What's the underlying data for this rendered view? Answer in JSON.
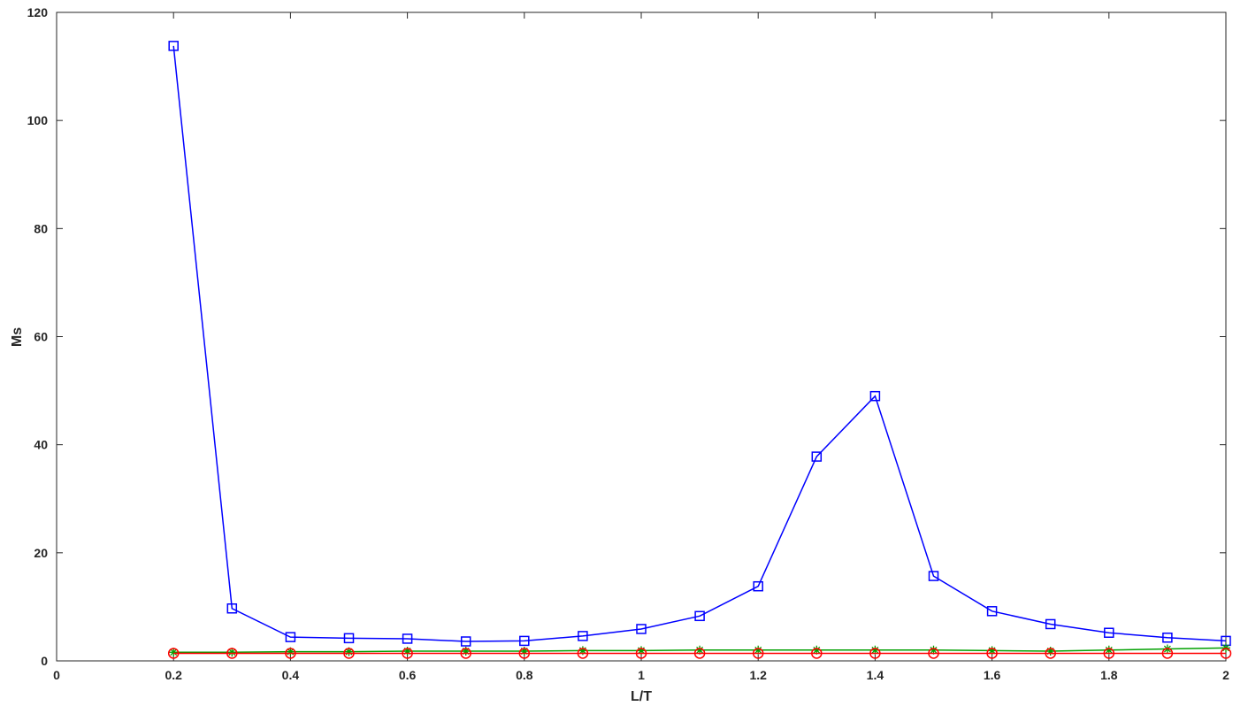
{
  "chart_data": {
    "type": "line",
    "xlabel": "L/T",
    "ylabel": "Ms",
    "xlim": [
      0,
      2
    ],
    "ylim": [
      0,
      120
    ],
    "xticks": [
      0,
      0.2,
      0.4,
      0.6,
      0.8,
      1,
      1.2,
      1.4,
      1.6,
      1.8,
      2
    ],
    "xtick_labels": [
      "0",
      "0.2",
      "0.4",
      "0.6",
      "0.8",
      "1",
      "1.2",
      "1.4",
      "1.6",
      "1.8",
      "2"
    ],
    "yticks": [
      0,
      20,
      40,
      60,
      80,
      100,
      120
    ],
    "ytick_labels": [
      "0",
      "20",
      "40",
      "60",
      "80",
      "100",
      "120"
    ],
    "grid": false,
    "x": [
      0.2,
      0.3,
      0.4,
      0.5,
      0.6,
      0.7,
      0.8,
      0.9,
      1.0,
      1.1,
      1.2,
      1.3,
      1.4,
      1.5,
      1.6,
      1.7,
      1.8,
      1.9,
      2.0
    ],
    "series": [
      {
        "color": "#0000ff",
        "marker": "square",
        "values": [
          113.8,
          9.7,
          4.4,
          4.2,
          4.1,
          3.6,
          3.7,
          4.6,
          5.9,
          8.3,
          13.8,
          37.8,
          49.0,
          15.7,
          9.2,
          6.8,
          5.2,
          4.3,
          3.7
        ]
      },
      {
        "color": "#00a000",
        "marker": "star",
        "values": [
          1.6,
          1.6,
          1.7,
          1.7,
          1.8,
          1.8,
          1.8,
          1.9,
          1.9,
          2.0,
          2.0,
          2.0,
          2.0,
          2.0,
          1.9,
          1.8,
          2.0,
          2.2,
          2.4
        ]
      },
      {
        "color": "#ff0000",
        "marker": "circle",
        "values": [
          1.4,
          1.4,
          1.4,
          1.4,
          1.4,
          1.4,
          1.4,
          1.4,
          1.4,
          1.4,
          1.4,
          1.4,
          1.4,
          1.4,
          1.4,
          1.4,
          1.4,
          1.4,
          1.4
        ]
      }
    ]
  }
}
